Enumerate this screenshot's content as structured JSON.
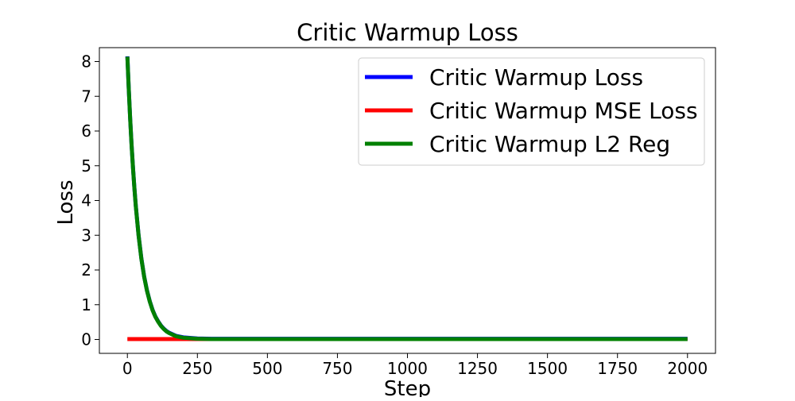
{
  "chart_data": {
    "type": "line",
    "title": "Critic Warmup Loss",
    "xlabel": "Step",
    "ylabel": "Loss",
    "xlim": [
      -100,
      2100
    ],
    "ylim": [
      -0.4,
      8.4
    ],
    "xticks": [
      0,
      250,
      500,
      750,
      1000,
      1250,
      1500,
      1750,
      2000
    ],
    "yticks": [
      0,
      1,
      2,
      3,
      4,
      5,
      6,
      7,
      8
    ],
    "grid": false,
    "legend_position": "top-right",
    "series": [
      {
        "name": "Critic Warmup Loss",
        "color": "#0000ff",
        "x": [
          0,
          5,
          10,
          15,
          20,
          25,
          30,
          40,
          50,
          60,
          70,
          80,
          90,
          100,
          110,
          120,
          130,
          140,
          150,
          175,
          200,
          250,
          300,
          400,
          500,
          750,
          1000,
          1250,
          1500,
          1750,
          2000
        ],
        "y": [
          8.15,
          7.2,
          6.35,
          5.6,
          4.95,
          4.37,
          3.85,
          3.0,
          2.33,
          1.81,
          1.41,
          1.1,
          0.85,
          0.66,
          0.52,
          0.4,
          0.31,
          0.24,
          0.19,
          0.1,
          0.06,
          0.03,
          0.02,
          0.02,
          0.02,
          0.02,
          0.02,
          0.02,
          0.02,
          0.02,
          0.02
        ]
      },
      {
        "name": "Critic Warmup MSE Loss",
        "color": "#ff0000",
        "x": [
          0,
          50,
          100,
          150,
          200,
          250,
          500,
          750,
          1000,
          1250,
          1500,
          1750,
          2000
        ],
        "y": [
          0.01,
          0.01,
          0.01,
          0.01,
          0.01,
          0.01,
          0.01,
          0.01,
          0.01,
          0.01,
          0.01,
          0.01,
          0.01
        ]
      },
      {
        "name": "Critic Warmup L2 Reg",
        "color": "#008000",
        "x": [
          0,
          5,
          10,
          15,
          20,
          25,
          30,
          40,
          50,
          60,
          70,
          80,
          90,
          100,
          110,
          120,
          130,
          140,
          150,
          175,
          200,
          250,
          300,
          400,
          500,
          750,
          1000,
          1250,
          1500,
          1750,
          2000
        ],
        "y": [
          8.14,
          7.19,
          6.34,
          5.59,
          4.94,
          4.36,
          3.84,
          2.99,
          2.32,
          1.8,
          1.4,
          1.09,
          0.84,
          0.65,
          0.51,
          0.39,
          0.3,
          0.23,
          0.18,
          0.09,
          0.05,
          0.02,
          0.01,
          0.01,
          0.01,
          0.01,
          0.01,
          0.01,
          0.01,
          0.01,
          0.01
        ]
      }
    ]
  }
}
